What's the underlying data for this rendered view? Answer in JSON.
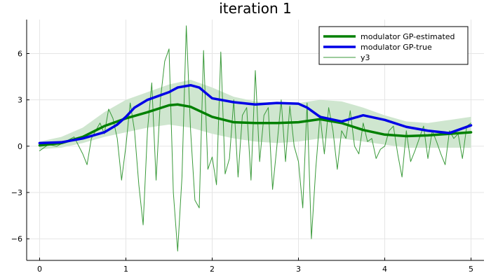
{
  "chart_data": {
    "type": "line",
    "title": "iteration 1",
    "xlabel": "",
    "ylabel": "",
    "xlim": [
      -0.15,
      5.15
    ],
    "ylim": [
      -7.4,
      8.2
    ],
    "xticks": [
      0,
      1,
      2,
      3,
      4,
      5
    ],
    "xtick_labels": [
      "0",
      "1",
      "2",
      "3",
      "4",
      "5"
    ],
    "yticks": [
      -6,
      -3,
      0,
      3,
      6
    ],
    "ytick_labels": [
      "−6",
      "−3",
      "0",
      "3",
      "6"
    ],
    "grid": true,
    "legend_position": "top-right",
    "band": {
      "color": "#cfe6cf",
      "x": [
        0,
        0.25,
        0.5,
        0.75,
        1.0,
        1.25,
        1.5,
        1.75,
        2.0,
        2.25,
        2.5,
        2.75,
        3.0,
        3.25,
        3.5,
        3.75,
        4.0,
        4.25,
        4.5,
        4.75,
        5.0
      ],
      "upper": [
        0.3,
        0.6,
        1.2,
        2.2,
        3.0,
        3.5,
        4.0,
        4.3,
        3.8,
        3.2,
        2.9,
        2.8,
        2.8,
        3.0,
        2.9,
        2.5,
        2.0,
        1.6,
        1.5,
        1.7,
        1.9
      ],
      "lower": [
        -0.2,
        -0.1,
        0.2,
        0.6,
        0.9,
        1.2,
        1.4,
        1.2,
        0.8,
        0.5,
        0.3,
        0.2,
        0.3,
        0.5,
        0.5,
        0.3,
        0.1,
        -0.1,
        -0.1,
        -0.1,
        -0.1
      ]
    },
    "series": [
      {
        "name": "modulator GP-estimated",
        "color": "#008000",
        "width": 3.5,
        "x": [
          0,
          0.25,
          0.5,
          0.75,
          1.0,
          1.25,
          1.5,
          1.6,
          1.75,
          2.0,
          2.25,
          2.5,
          2.75,
          3.0,
          3.25,
          3.5,
          3.75,
          4.0,
          4.25,
          4.5,
          4.75,
          5.0
        ],
        "y": [
          0.05,
          0.2,
          0.6,
          1.3,
          1.8,
          2.2,
          2.65,
          2.7,
          2.55,
          1.9,
          1.55,
          1.5,
          1.5,
          1.55,
          1.75,
          1.5,
          1.05,
          0.75,
          0.65,
          0.7,
          0.8,
          0.9
        ]
      },
      {
        "name": "modulator GP-true",
        "color": "#0000e6",
        "width": 3.5,
        "x": [
          0,
          0.25,
          0.5,
          0.75,
          0.9,
          1.0,
          1.1,
          1.25,
          1.5,
          1.6,
          1.75,
          1.85,
          2.0,
          2.25,
          2.5,
          2.75,
          3.0,
          3.1,
          3.25,
          3.5,
          3.75,
          4.0,
          4.25,
          4.5,
          4.75,
          5.0
        ],
        "y": [
          0.2,
          0.25,
          0.5,
          0.9,
          1.4,
          1.9,
          2.5,
          3.0,
          3.5,
          3.8,
          3.95,
          3.8,
          3.1,
          2.85,
          2.7,
          2.8,
          2.75,
          2.5,
          1.9,
          1.6,
          2.0,
          1.7,
          1.25,
          1.0,
          0.85,
          1.35
        ]
      },
      {
        "name": "y3",
        "color": "#3a9a3a",
        "width": 1,
        "x": [
          0,
          0.1,
          0.2,
          0.3,
          0.4,
          0.5,
          0.55,
          0.6,
          0.7,
          0.75,
          0.8,
          0.85,
          0.9,
          0.95,
          1.0,
          1.05,
          1.1,
          1.15,
          1.2,
          1.25,
          1.3,
          1.35,
          1.4,
          1.45,
          1.5,
          1.55,
          1.6,
          1.65,
          1.7,
          1.75,
          1.8,
          1.85,
          1.9,
          1.95,
          2.0,
          2.05,
          2.1,
          2.15,
          2.2,
          2.25,
          2.3,
          2.35,
          2.4,
          2.45,
          2.5,
          2.55,
          2.6,
          2.65,
          2.7,
          2.75,
          2.8,
          2.85,
          2.9,
          2.95,
          3.0,
          3.05,
          3.1,
          3.15,
          3.2,
          3.25,
          3.3,
          3.35,
          3.4,
          3.45,
          3.5,
          3.55,
          3.6,
          3.65,
          3.7,
          3.75,
          3.8,
          3.85,
          3.9,
          3.95,
          4.0,
          4.05,
          4.1,
          4.15,
          4.2,
          4.25,
          4.3,
          4.35,
          4.4,
          4.45,
          4.5,
          4.55,
          4.6,
          4.65,
          4.7,
          4.75,
          4.8,
          4.85,
          4.9,
          4.95,
          5.0
        ],
        "y": [
          -0.3,
          0.1,
          0.0,
          0.3,
          0.6,
          -0.5,
          -1.2,
          0.5,
          1.5,
          0.8,
          2.4,
          1.8,
          0.5,
          -2.2,
          0.0,
          2.8,
          1.0,
          -2.5,
          -5.1,
          1.0,
          4.1,
          -2.2,
          3.0,
          5.5,
          6.3,
          -3.0,
          -6.8,
          -2.0,
          7.8,
          1.0,
          -3.5,
          -4.0,
          6.2,
          -1.5,
          -0.7,
          -2.5,
          6.1,
          -1.8,
          -0.8,
          3.0,
          -2.0,
          2.0,
          2.5,
          -2.2,
          4.9,
          -1.0,
          2.0,
          2.5,
          -2.8,
          0.0,
          3.0,
          -1.0,
          2.6,
          0.0,
          -1.0,
          -4.0,
          2.8,
          -6.0,
          -1.5,
          2.0,
          -0.5,
          2.5,
          1.0,
          -1.5,
          1.0,
          0.5,
          2.3,
          0.0,
          -0.5,
          1.5,
          0.3,
          0.5,
          -0.8,
          -0.2,
          0.0,
          1.0,
          1.3,
          -0.5,
          -2.0,
          1.0,
          -1.0,
          -0.3,
          0.5,
          1.3,
          -0.8,
          1.0,
          0.3,
          -0.5,
          -1.2,
          1.0,
          0.5,
          0.8,
          -0.8,
          1.3,
          1.5
        ]
      }
    ]
  }
}
